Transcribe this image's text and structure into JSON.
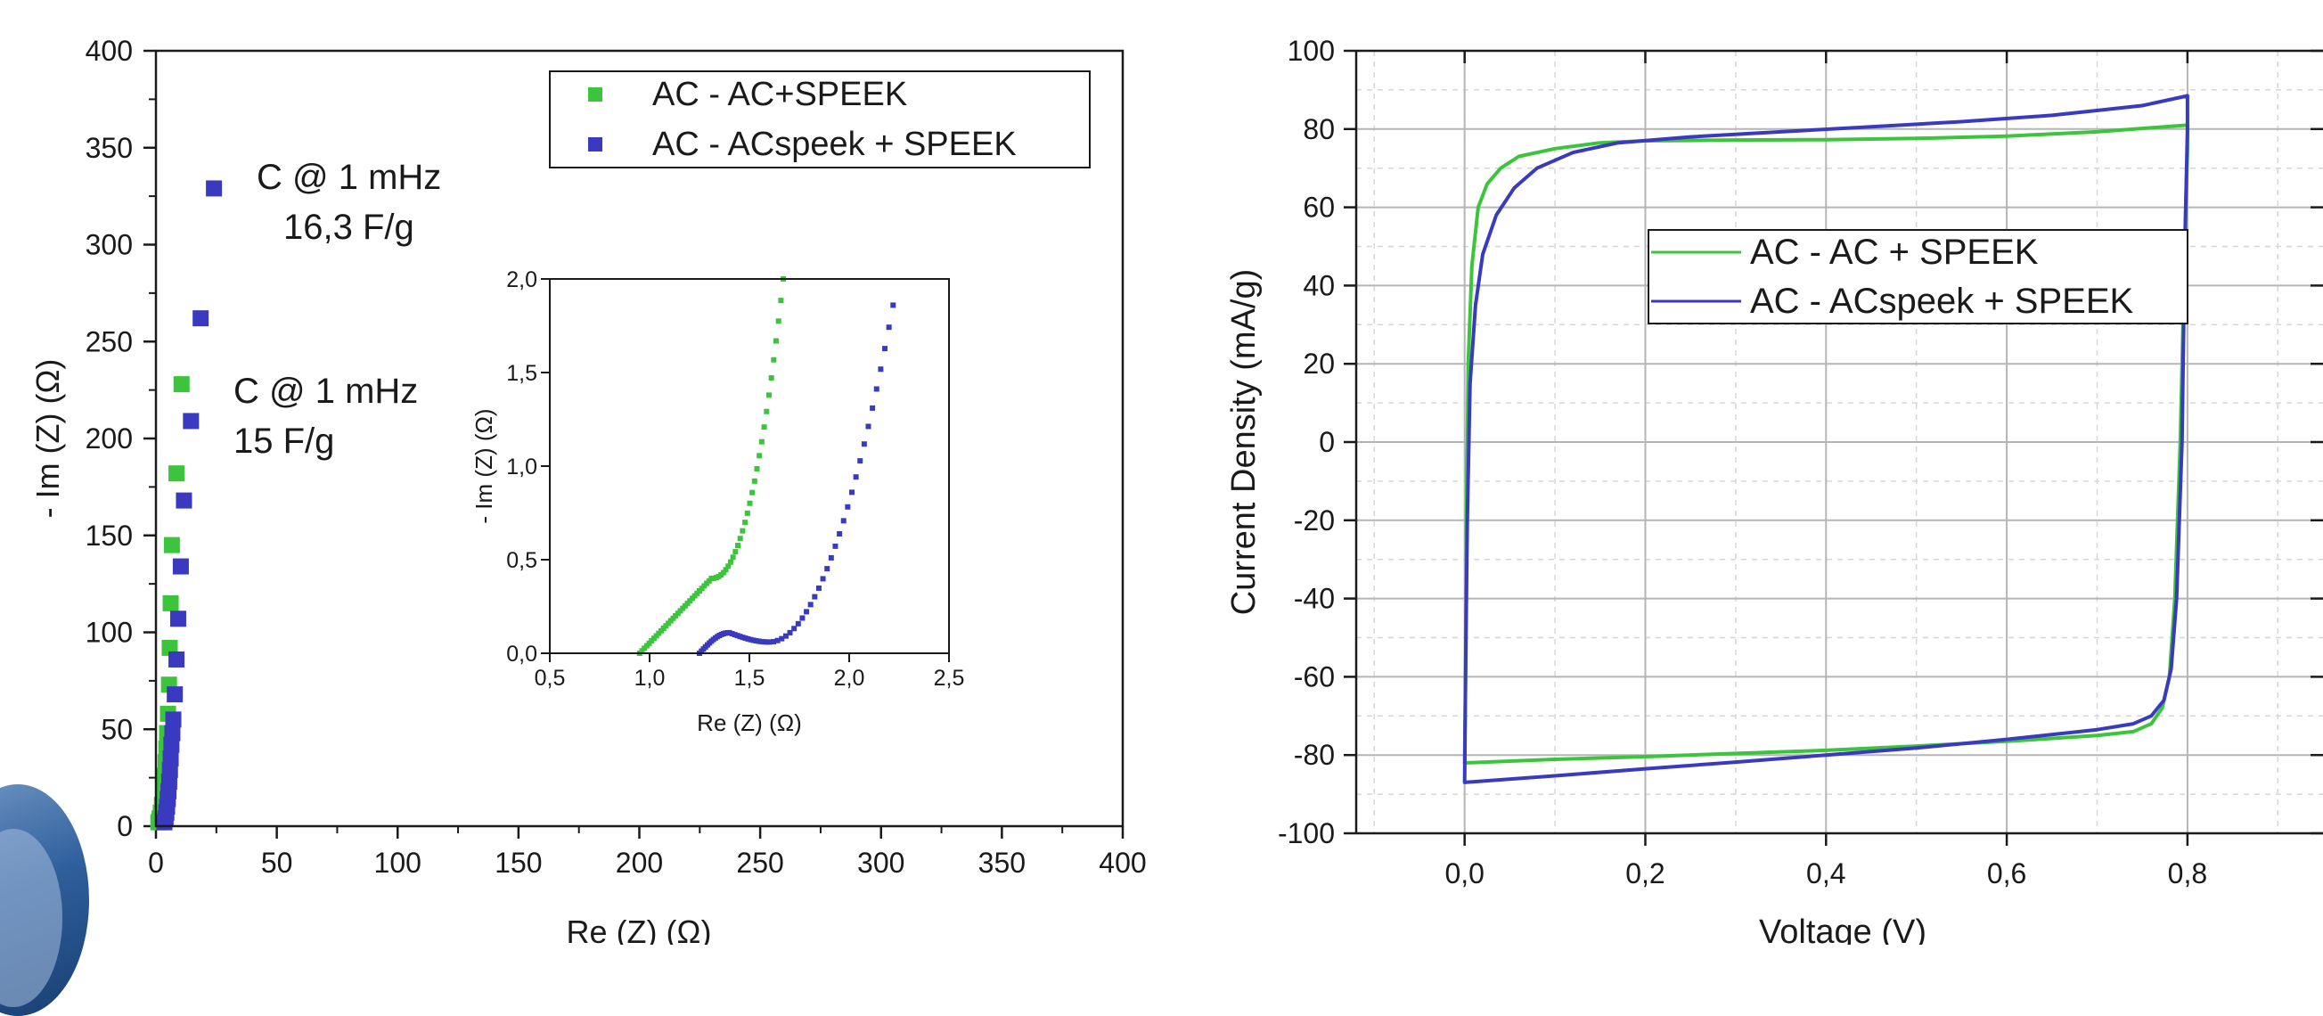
{
  "colors": {
    "green": "#3cc43c",
    "blue": "#3a3ac0",
    "axis": "#1a1a1a",
    "grid": "#b5b5b5",
    "logo": "#2f5f9c"
  },
  "chart_data": [
    {
      "type": "scatter",
      "xlabel": "Re (Z) (Ω)",
      "ylabel": "- Im (Z) (Ω)",
      "xlim": [
        0,
        400
      ],
      "ylim": [
        0,
        400
      ],
      "xticks": [
        "0",
        "50",
        "100",
        "150",
        "200",
        "250",
        "300",
        "350",
        "400"
      ],
      "yticks": [
        "0",
        "50",
        "100",
        "150",
        "200",
        "250",
        "300",
        "350",
        "400"
      ],
      "grid": false,
      "legend_position": "top-right",
      "series": [
        {
          "name": "AC - AC+SPEEK",
          "color": "#3cc43c",
          "points": [
            [
              1,
              2
            ],
            [
              1.5,
              4
            ],
            [
              2,
              7
            ],
            [
              2.5,
              11
            ],
            [
              3,
              15
            ],
            [
              3.3,
              20
            ],
            [
              3.6,
              26
            ],
            [
              4,
              33
            ],
            [
              4.3,
              40
            ],
            [
              4.6,
              48
            ],
            [
              5,
              58
            ],
            [
              5.4,
              73
            ],
            [
              5.7,
              92
            ],
            [
              6.1,
              115
            ],
            [
              6.6,
              145
            ],
            [
              8.5,
              182
            ],
            [
              10.6,
              228
            ]
          ]
        },
        {
          "name": "AC - ACspeek + SPEEK",
          "color": "#3a3ac0",
          "points": [
            [
              3.5,
              2
            ],
            [
              4,
              4
            ],
            [
              4.3,
              7
            ],
            [
              4.6,
              10
            ],
            [
              4.9,
              14
            ],
            [
              5.2,
              18
            ],
            [
              5.5,
              23
            ],
            [
              5.8,
              29
            ],
            [
              6.1,
              35
            ],
            [
              6.4,
              42
            ],
            [
              6.8,
              48
            ],
            [
              7.2,
              55
            ],
            [
              7.8,
              68
            ],
            [
              8.5,
              86
            ],
            [
              9.2,
              107
            ],
            [
              10.3,
              134
            ],
            [
              11.6,
              168
            ],
            [
              14.5,
              209
            ],
            [
              18.5,
              262
            ],
            [
              24,
              329
            ]
          ]
        }
      ],
      "annotations": [
        {
          "lines": [
            "C @ 1 mHz",
            "16,3 F/g"
          ],
          "color": "#3a3ac0"
        },
        {
          "lines": [
            "C @ 1 mHz",
            "15 F/g"
          ],
          "color": "#3cc43c"
        }
      ],
      "inset": {
        "type": "scatter",
        "xlabel": "Re (Z) (Ω)",
        "ylabel": "- Im (Z) (Ω)",
        "xlim": [
          0.5,
          2.5
        ],
        "ylim": [
          0,
          2
        ],
        "xticks": [
          "0,5",
          "1,0",
          "1,5",
          "2,0",
          "2,5"
        ],
        "yticks": [
          "0,0",
          "0,5",
          "1,0",
          "1,5",
          "2,0"
        ]
      }
    },
    {
      "type": "line",
      "xlabel": "Voltage (V)",
      "ylabel": "Current Density (mA/g)",
      "xlim": [
        -0.12,
        0.95
      ],
      "ylim": [
        -100,
        100
      ],
      "xticks": [
        "0,0",
        "0,2",
        "0,4",
        "0,6",
        "0,8"
      ],
      "yticks": [
        "-100",
        "-80",
        "-60",
        "-40",
        "-20",
        "0",
        "20",
        "40",
        "60",
        "80",
        "100"
      ],
      "grid": true,
      "legend_position": "upper-center",
      "series": [
        {
          "name": "AC - AC + SPEEK",
          "color": "#3cc43c",
          "points": [
            [
              0,
              -82
            ],
            [
              0.001,
              -60
            ],
            [
              0.002,
              -20
            ],
            [
              0.004,
              20
            ],
            [
              0.008,
              45
            ],
            [
              0.015,
              60
            ],
            [
              0.025,
              66
            ],
            [
              0.04,
              70
            ],
            [
              0.06,
              73
            ],
            [
              0.1,
              75
            ],
            [
              0.15,
              76.5
            ],
            [
              0.2,
              77
            ],
            [
              0.3,
              77.2
            ],
            [
              0.4,
              77.3
            ],
            [
              0.5,
              77.6
            ],
            [
              0.6,
              78.2
            ],
            [
              0.7,
              79.3
            ],
            [
              0.8,
              81
            ],
            [
              0.8,
              75
            ],
            [
              0.797,
              50
            ],
            [
              0.792,
              0
            ],
            [
              0.786,
              -40
            ],
            [
              0.78,
              -60
            ],
            [
              0.772,
              -68
            ],
            [
              0.76,
              -72
            ],
            [
              0.74,
              -74
            ],
            [
              0.7,
              -75
            ],
            [
              0.6,
              -76.5
            ],
            [
              0.5,
              -77.7
            ],
            [
              0.4,
              -78.8
            ],
            [
              0.3,
              -79.6
            ],
            [
              0.2,
              -80.4
            ],
            [
              0.1,
              -81.1
            ],
            [
              0,
              -82
            ]
          ]
        },
        {
          "name": "AC - ACspeek + SPEEK",
          "color": "#3a3ac0",
          "points": [
            [
              0,
              -87
            ],
            [
              0.001,
              -60
            ],
            [
              0.003,
              -20
            ],
            [
              0.006,
              15
            ],
            [
              0.012,
              35
            ],
            [
              0.02,
              48
            ],
            [
              0.035,
              58
            ],
            [
              0.055,
              65
            ],
            [
              0.08,
              70
            ],
            [
              0.12,
              74
            ],
            [
              0.17,
              76.5
            ],
            [
              0.25,
              78
            ],
            [
              0.35,
              79.3
            ],
            [
              0.45,
              80.6
            ],
            [
              0.55,
              81.9
            ],
            [
              0.65,
              83.5
            ],
            [
              0.75,
              86
            ],
            [
              0.8,
              88.5
            ],
            [
              0.8,
              80
            ],
            [
              0.797,
              50
            ],
            [
              0.794,
              0
            ],
            [
              0.788,
              -40
            ],
            [
              0.782,
              -58
            ],
            [
              0.774,
              -66
            ],
            [
              0.76,
              -70
            ],
            [
              0.74,
              -72
            ],
            [
              0.7,
              -73.5
            ],
            [
              0.6,
              -76
            ],
            [
              0.5,
              -78.2
            ],
            [
              0.4,
              -80
            ],
            [
              0.3,
              -81.8
            ],
            [
              0.2,
              -83.5
            ],
            [
              0.1,
              -85.3
            ],
            [
              0,
              -87
            ]
          ]
        }
      ]
    }
  ]
}
